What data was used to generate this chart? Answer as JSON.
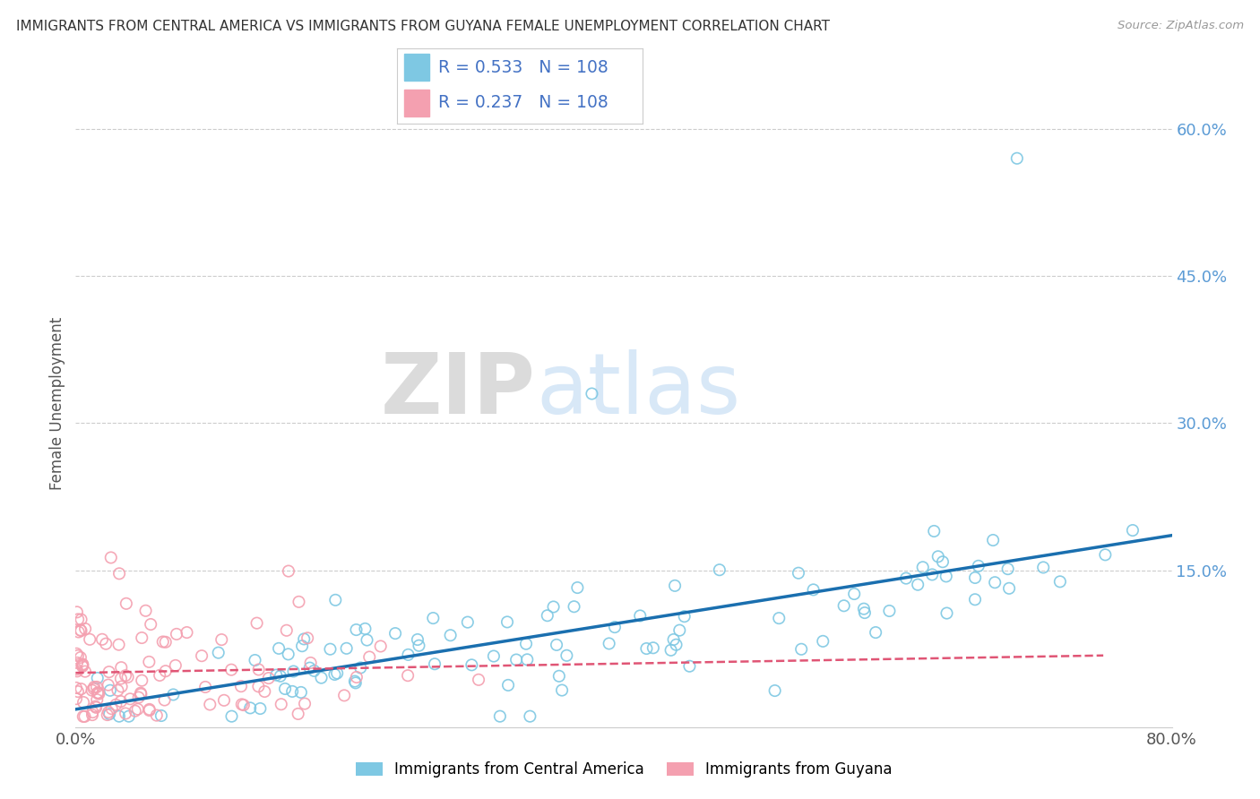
{
  "title": "IMMIGRANTS FROM CENTRAL AMERICA VS IMMIGRANTS FROM GUYANA FEMALE UNEMPLOYMENT CORRELATION CHART",
  "source": "Source: ZipAtlas.com",
  "ylabel": "Female Unemployment",
  "x_min": 0.0,
  "x_max": 0.8,
  "y_min": -0.01,
  "y_max": 0.65,
  "y_ticks_right": [
    0.15,
    0.3,
    0.45,
    0.6
  ],
  "y_tick_labels_right": [
    "15.0%",
    "30.0%",
    "45.0%",
    "60.0%"
  ],
  "R_blue": 0.533,
  "N_blue": 108,
  "R_pink": 0.237,
  "N_pink": 108,
  "legend_label_blue": "Immigrants from Central America",
  "legend_label_pink": "Immigrants from Guyana",
  "dot_color_blue": "#7ec8e3",
  "dot_color_pink": "#f4a0b0",
  "line_color_blue": "#1a6faf",
  "line_color_pink": "#e05575",
  "watermark_zip": "ZIP",
  "watermark_atlas": "atlas",
  "background_color": "#ffffff",
  "grid_color": "#cccccc"
}
